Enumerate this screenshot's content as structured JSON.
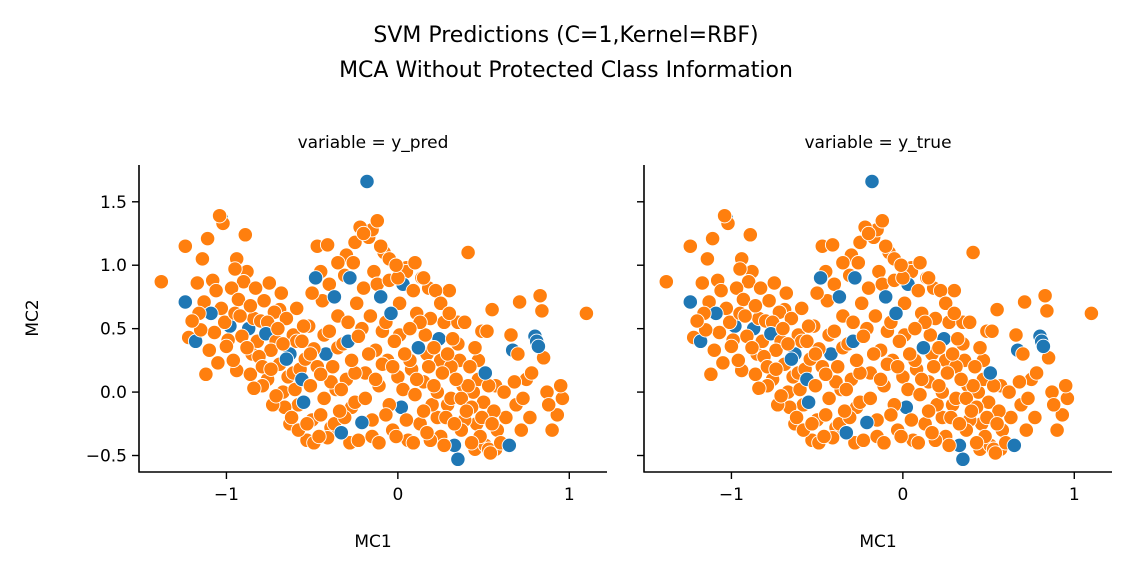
{
  "chart_data": {
    "type": "scatter",
    "title": [
      "SVM Predictions (C=1,Kernel=RBF)",
      "MCA Without Protected Class Information"
    ],
    "xlabel": "MC1",
    "ylabel": "MC2",
    "xlim": [
      -1.51,
      1.22
    ],
    "ylim": [
      -0.63,
      1.79
    ],
    "xticks": [
      -1,
      0,
      1
    ],
    "xtick_labels": [
      "−1",
      "0",
      "1"
    ],
    "yticks": [
      -0.5,
      0.0,
      0.5,
      1.0,
      1.5
    ],
    "ytick_labels": [
      "−0.5",
      "0.0",
      "0.5",
      "1.0",
      "1.5"
    ],
    "grid": false,
    "legend": "none",
    "class_colors": {
      "0": "#1f77b4",
      "1": "#ff7f0e"
    },
    "panels": [
      {
        "label": "variable = y_pred",
        "variable": "y_pred"
      },
      {
        "label": "variable = y_true",
        "variable": "y_true"
      }
    ],
    "points": [
      [
        -1.38,
        0.87,
        1
      ],
      [
        -1.24,
        0.71,
        0
      ],
      [
        -1.24,
        1.15,
        1
      ],
      [
        -1.22,
        0.43,
        1
      ],
      [
        -1.18,
        0.4,
        0
      ],
      [
        -1.16,
        0.62,
        1
      ],
      [
        -1.14,
        1.05,
        1
      ],
      [
        -1.12,
        0.14,
        1
      ],
      [
        -1.11,
        1.21,
        1
      ],
      [
        -1.08,
        0.88,
        1
      ],
      [
        -1.04,
        1.39,
        1
      ],
      [
        -1.03,
        1.37,
        0
      ],
      [
        -1.02,
        1.33,
        1
      ],
      [
        -0.99,
        0.41,
        1
      ],
      [
        -0.98,
        0.52,
        0
      ],
      [
        -0.96,
        0.25,
        1
      ],
      [
        -0.95,
        0.97,
        1
      ],
      [
        -0.94,
        1.05,
        1
      ],
      [
        -0.93,
        0.73,
        1
      ],
      [
        -0.92,
        0.6,
        1
      ],
      [
        -0.9,
        0.87,
        1
      ],
      [
        -0.89,
        1.24,
        1
      ],
      [
        -0.88,
        0.95,
        1
      ],
      [
        -0.87,
        0.5,
        0
      ],
      [
        -0.86,
        0.68,
        1
      ],
      [
        -0.85,
        0.3,
        1
      ],
      [
        -0.84,
        0.03,
        1
      ],
      [
        -0.83,
        0.82,
        1
      ],
      [
        -0.82,
        0.4,
        1
      ],
      [
        -0.8,
        0.56,
        1
      ],
      [
        -0.79,
        0.2,
        1
      ],
      [
        -0.78,
        0.72,
        1
      ],
      [
        -0.77,
        0.46,
        0
      ],
      [
        -0.76,
        0.1,
        1
      ],
      [
        -0.75,
        0.86,
        1
      ],
      [
        -0.74,
        0.33,
        1
      ],
      [
        -0.72,
        0.63,
        1
      ],
      [
        -0.71,
        -0.03,
        1
      ],
      [
        -0.7,
        0.5,
        1
      ],
      [
        -0.69,
        0.22,
        1
      ],
      [
        -0.68,
        0.78,
        1
      ],
      [
        -0.67,
        0.38,
        1
      ],
      [
        -0.66,
        -0.12,
        1
      ],
      [
        -0.65,
        0.58,
        1
      ],
      [
        -0.64,
        0.12,
        1
      ],
      [
        -0.63,
        0.3,
        0
      ],
      [
        -0.62,
        -0.2,
        1
      ],
      [
        -0.61,
        0.45,
        1
      ],
      [
        -0.6,
        0.02,
        1
      ],
      [
        -0.59,
        0.66,
        1
      ],
      [
        -0.58,
        -0.3,
        1
      ],
      [
        -0.57,
        0.18,
        1
      ],
      [
        -0.56,
        0.4,
        1
      ],
      [
        -0.55,
        -0.08,
        0
      ],
      [
        -0.54,
        0.26,
        1
      ],
      [
        -0.53,
        -0.38,
        1
      ],
      [
        -0.52,
        0.52,
        1
      ],
      [
        -0.51,
        0.05,
        1
      ],
      [
        -0.5,
        -0.22,
        1
      ],
      [
        -0.49,
        0.34,
        1
      ],
      [
        -0.48,
        0.9,
        0
      ],
      [
        -0.47,
        1.15,
        1
      ],
      [
        -0.46,
        -0.35,
        1
      ],
      [
        -0.45,
        0.14,
        1
      ],
      [
        -0.44,
        0.72,
        1
      ],
      [
        -0.43,
        -0.05,
        1
      ],
      [
        -0.42,
        0.3,
        0
      ],
      [
        -0.41,
        1.16,
        1
      ],
      [
        -0.4,
        0.48,
        1
      ],
      [
        -0.39,
        -0.28,
        1
      ],
      [
        -0.38,
        0.2,
        1
      ],
      [
        -0.37,
        0.75,
        0
      ],
      [
        -0.36,
        0.02,
        1
      ],
      [
        -0.35,
        0.6,
        1
      ],
      [
        -0.34,
        -0.15,
        1
      ],
      [
        -0.33,
        -0.32,
        0
      ],
      [
        -0.32,
        0.38,
        1
      ],
      [
        -0.31,
        0.92,
        1
      ],
      [
        -0.3,
        0.1,
        1
      ],
      [
        -0.29,
        0.55,
        1
      ],
      [
        -0.28,
        -0.4,
        1
      ],
      [
        -0.27,
        0.25,
        1
      ],
      [
        -0.26,
        1.02,
        1
      ],
      [
        -0.25,
        -0.08,
        1
      ],
      [
        -0.24,
        0.7,
        1
      ],
      [
        -0.23,
        0.44,
        1
      ],
      [
        -0.22,
        1.3,
        1
      ],
      [
        -0.21,
        -0.24,
        0
      ],
      [
        -0.2,
        0.82,
        1
      ],
      [
        -0.19,
        0.15,
        1
      ],
      [
        -0.18,
        1.66,
        0
      ],
      [
        -0.17,
        1.22,
        1
      ],
      [
        -0.16,
        0.6,
        1
      ],
      [
        -0.15,
        -0.35,
        1
      ],
      [
        -0.14,
        0.95,
        1
      ],
      [
        -0.13,
        0.33,
        1
      ],
      [
        -0.12,
        1.35,
        1
      ],
      [
        -0.11,
        0.05,
        1
      ],
      [
        -0.1,
        0.75,
        0
      ],
      [
        -0.09,
        0.48,
        1
      ],
      [
        -0.08,
        1.1,
        1
      ],
      [
        -0.07,
        -0.18,
        1
      ],
      [
        -0.06,
        0.25,
        1
      ],
      [
        -0.05,
        0.88,
        1
      ],
      [
        -0.04,
        0.62,
        0
      ],
      [
        -0.03,
        -0.3,
        1
      ],
      [
        -0.02,
        0.4,
        1
      ],
      [
        -0.01,
        1.0,
        1
      ],
      [
        0.0,
        0.12,
        1
      ],
      [
        0.01,
        0.7,
        1
      ],
      [
        0.02,
        -0.12,
        0
      ],
      [
        0.03,
        0.85,
        0
      ],
      [
        0.04,
        0.3,
        1
      ],
      [
        0.05,
        0.98,
        1
      ],
      [
        0.06,
        -0.38,
        1
      ],
      [
        0.07,
        0.5,
        1
      ],
      [
        0.08,
        0.18,
        1
      ],
      [
        0.09,
        0.8,
        1
      ],
      [
        0.1,
        -0.02,
        1
      ],
      [
        0.11,
        0.62,
        1
      ],
      [
        0.12,
        0.35,
        0
      ],
      [
        0.13,
        -0.25,
        1
      ],
      [
        0.14,
        0.9,
        1
      ],
      [
        0.15,
        0.08,
        1
      ],
      [
        0.16,
        0.45,
        1
      ],
      [
        0.17,
        -0.32,
        1
      ],
      [
        0.18,
        0.2,
        1
      ],
      [
        0.19,
        0.58,
        1
      ],
      [
        0.2,
        -0.1,
        1
      ],
      [
        0.21,
        0.35,
        1
      ],
      [
        0.22,
        0.8,
        1
      ],
      [
        0.23,
        0.0,
        1
      ],
      [
        0.24,
        0.42,
        0
      ],
      [
        0.25,
        -0.35,
        1
      ],
      [
        0.26,
        0.15,
        1
      ],
      [
        0.27,
        0.55,
        1
      ],
      [
        0.28,
        -0.2,
        1
      ],
      [
        0.29,
        0.3,
        1
      ],
      [
        0.3,
        0.8,
        1
      ],
      [
        0.31,
        -0.05,
        1
      ],
      [
        0.32,
        0.42,
        1
      ],
      [
        0.33,
        -0.42,
        0
      ],
      [
        0.34,
        0.1,
        1
      ],
      [
        0.35,
        -0.53,
        0
      ],
      [
        0.36,
        0.25,
        1
      ],
      [
        0.37,
        -0.3,
        1
      ],
      [
        0.38,
        0.05,
        1
      ],
      [
        0.39,
        0.55,
        1
      ],
      [
        0.4,
        -0.15,
        1
      ],
      [
        0.41,
        1.1,
        1
      ],
      [
        0.42,
        0.2,
        1
      ],
      [
        0.43,
        -0.4,
        1
      ],
      [
        0.44,
        0.0,
        1
      ],
      [
        0.45,
        0.35,
        1
      ],
      [
        0.46,
        -0.25,
        1
      ],
      [
        0.47,
        0.1,
        1
      ],
      [
        0.48,
        -0.35,
        1
      ],
      [
        0.49,
        0.48,
        1
      ],
      [
        0.5,
        -0.08,
        1
      ],
      [
        0.51,
        0.15,
        0
      ],
      [
        0.52,
        0.48,
        1
      ],
      [
        0.53,
        -0.45,
        1
      ],
      [
        0.54,
        -0.48,
        1
      ],
      [
        0.55,
        0.65,
        1
      ],
      [
        0.56,
        -0.15,
        1
      ],
      [
        0.57,
        0.05,
        1
      ],
      [
        0.58,
        -0.3,
        1
      ],
      [
        0.6,
        -0.4,
        1
      ],
      [
        0.62,
        0.0,
        1
      ],
      [
        0.63,
        -0.2,
        1
      ],
      [
        0.65,
        -0.42,
        0
      ],
      [
        0.66,
        0.45,
        1
      ],
      [
        0.67,
        0.33,
        0
      ],
      [
        0.68,
        0.08,
        1
      ],
      [
        0.69,
        -0.1,
        1
      ],
      [
        0.7,
        0.3,
        1
      ],
      [
        0.71,
        0.71,
        1
      ],
      [
        0.72,
        -0.3,
        1
      ],
      [
        0.73,
        -0.05,
        1
      ],
      [
        0.75,
        0.1,
        1
      ],
      [
        0.77,
        -0.2,
        1
      ],
      [
        0.78,
        0.15,
        1
      ],
      [
        0.8,
        0.44,
        0
      ],
      [
        0.81,
        0.4,
        0
      ],
      [
        0.82,
        0.36,
        0
      ],
      [
        0.83,
        0.76,
        1
      ],
      [
        0.84,
        0.64,
        1
      ],
      [
        0.85,
        0.27,
        1
      ],
      [
        0.87,
        0.0,
        1
      ],
      [
        0.88,
        -0.1,
        1
      ],
      [
        0.9,
        -0.3,
        1
      ],
      [
        0.93,
        -0.18,
        1
      ],
      [
        0.95,
        0.05,
        1
      ],
      [
        0.96,
        -0.05,
        1
      ],
      [
        1.1,
        0.62,
        1
      ],
      [
        -1.2,
        0.56,
        1
      ],
      [
        -1.17,
        0.86,
        1
      ],
      [
        -1.15,
        0.49,
        1
      ],
      [
        -1.13,
        0.71,
        1
      ],
      [
        -1.1,
        0.33,
        1
      ],
      [
        -1.09,
        0.62,
        0
      ],
      [
        -1.07,
        0.47,
        1
      ],
      [
        -1.06,
        0.8,
        1
      ],
      [
        -1.05,
        0.23,
        1
      ],
      [
        -1.03,
        0.66,
        1
      ],
      [
        -1.01,
        0.55,
        1
      ],
      [
        -1.0,
        0.36,
        1
      ],
      [
        -0.97,
        0.82,
        1
      ],
      [
        -0.95,
        0.62,
        1
      ],
      [
        -0.94,
        0.17,
        1
      ],
      [
        -0.91,
        0.44,
        1
      ],
      [
        -0.88,
        0.35,
        1
      ],
      [
        -0.86,
        0.14,
        1
      ],
      [
        -0.84,
        0.58,
        1
      ],
      [
        -0.81,
        0.28,
        1
      ],
      [
        -0.79,
        0.05,
        1
      ],
      [
        -0.76,
        0.55,
        1
      ],
      [
        -0.74,
        0.18,
        1
      ],
      [
        -0.73,
        -0.1,
        1
      ],
      [
        -0.71,
        0.4,
        1
      ],
      [
        -0.69,
        0.65,
        1
      ],
      [
        -0.67,
        0.0,
        1
      ],
      [
        -0.65,
        0.26,
        0
      ],
      [
        -0.63,
        -0.25,
        1
      ],
      [
        -0.61,
        0.15,
        1
      ],
      [
        -0.59,
        0.4,
        1
      ],
      [
        -0.58,
        -0.1,
        1
      ],
      [
        -0.56,
        0.1,
        0
      ],
      [
        -0.55,
        0.52,
        1
      ],
      [
        -0.53,
        -0.25,
        1
      ],
      [
        -0.51,
        0.3,
        1
      ],
      [
        -0.49,
        -0.4,
        1
      ],
      [
        -0.47,
        0.2,
        1
      ],
      [
        -0.45,
        -0.18,
        1
      ],
      [
        -0.43,
        0.45,
        1
      ],
      [
        -0.41,
        -0.36,
        1
      ],
      [
        -0.39,
        0.08,
        1
      ],
      [
        -0.37,
        -0.25,
        1
      ],
      [
        -0.35,
        0.35,
        1
      ],
      [
        -0.33,
        0.02,
        1
      ],
      [
        -0.31,
        -0.2,
        1
      ],
      [
        -0.29,
        0.4,
        0
      ],
      [
        -0.27,
        -0.12,
        1
      ],
      [
        -0.25,
        0.15,
        1
      ],
      [
        -0.23,
        -0.38,
        1
      ],
      [
        -0.21,
        0.5,
        1
      ],
      [
        -0.19,
        -0.05,
        1
      ],
      [
        -0.17,
        0.3,
        1
      ],
      [
        -0.15,
        -0.22,
        1
      ],
      [
        -0.13,
        0.1,
        1
      ],
      [
        -0.11,
        -0.4,
        1
      ],
      [
        -0.09,
        0.22,
        1
      ],
      [
        -0.07,
        0.55,
        1
      ],
      [
        -0.05,
        -0.1,
        1
      ],
      [
        -0.03,
        0.2,
        1
      ],
      [
        -0.01,
        -0.35,
        1
      ],
      [
        0.01,
        0.45,
        1
      ],
      [
        0.03,
        0.02,
        1
      ],
      [
        0.05,
        -0.22,
        1
      ],
      [
        0.07,
        0.25,
        1
      ],
      [
        0.09,
        -0.4,
        1
      ],
      [
        0.11,
        0.1,
        1
      ],
      [
        0.13,
        0.55,
        1
      ],
      [
        0.15,
        -0.15,
        1
      ],
      [
        0.17,
        0.3,
        1
      ],
      [
        0.19,
        -0.38,
        1
      ],
      [
        0.21,
        0.05,
        1
      ],
      [
        0.23,
        -0.2,
        1
      ],
      [
        0.25,
        0.25,
        1
      ],
      [
        0.27,
        -0.42,
        1
      ],
      [
        0.29,
        -0.1,
        1
      ],
      [
        0.31,
        0.2,
        1
      ],
      [
        0.33,
        -0.25,
        1
      ],
      [
        0.35,
        0.38,
        1
      ],
      [
        0.37,
        -0.05,
        1
      ],
      [
        0.39,
        -0.22,
        1
      ],
      [
        0.41,
        0.05,
        1
      ],
      [
        0.43,
        -0.12,
        1
      ],
      [
        0.45,
        -0.45,
        1
      ],
      [
        0.47,
        0.25,
        1
      ],
      [
        0.49,
        -0.2,
        1
      ],
      [
        0.51,
        -0.42,
        1
      ],
      [
        0.53,
        0.05,
        1
      ],
      [
        0.55,
        -0.25,
        1
      ],
      [
        0.57,
        -0.45,
        1
      ],
      [
        -0.35,
        1.02,
        1
      ],
      [
        -0.3,
        1.08,
        1
      ],
      [
        -0.25,
        1.18,
        1
      ],
      [
        -0.2,
        1.25,
        1
      ],
      [
        -0.15,
        1.28,
        1
      ],
      [
        -0.1,
        1.15,
        1
      ],
      [
        -0.05,
        1.05,
        1
      ],
      [
        0.05,
        0.95,
        1
      ],
      [
        0.1,
        1.02,
        1
      ],
      [
        0.15,
        0.9,
        1
      ],
      [
        -0.45,
        0.95,
        1
      ],
      [
        -0.4,
        0.85,
        1
      ],
      [
        -0.28,
        0.9,
        0
      ],
      [
        -0.12,
        0.85,
        1
      ],
      [
        0.0,
        0.9,
        1
      ],
      [
        0.18,
        0.82,
        1
      ],
      [
        0.25,
        0.7,
        1
      ],
      [
        0.3,
        0.62,
        1
      ],
      [
        0.35,
        0.55,
        1
      ],
      [
        -0.5,
        0.78,
        1
      ]
    ]
  }
}
